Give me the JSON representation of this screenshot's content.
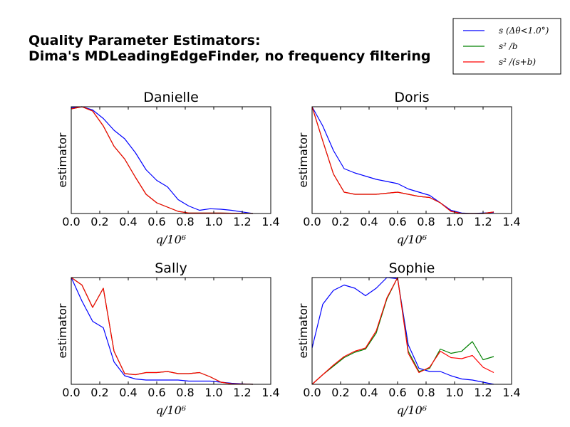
{
  "figure": {
    "title_line1": "Quality Parameter Estimators:",
    "title_line2": "Dima's MDLeadingEdgeFinder, no frequency filtering"
  },
  "legend": {
    "placement": "top-right",
    "entries": [
      {
        "label": "s (Δθ<1.0°)",
        "color": "#0000ff"
      },
      {
        "label": "s² /b",
        "color": "#008000"
      },
      {
        "label": "s² /(s+b)",
        "color": "#ff0000"
      }
    ]
  },
  "chart_data": [
    {
      "type": "line",
      "title": "Danielle",
      "xlabel": "q/10⁶",
      "ylabel": "estimator",
      "xlim": [
        0,
        1.4
      ],
      "ylim": [
        0,
        1
      ],
      "xticks": [
        "0.0",
        "0.2",
        "0.4",
        "0.6",
        "0.8",
        "1.0",
        "1.2",
        "1.4"
      ],
      "x": [
        0.0,
        0.075,
        0.15,
        0.225,
        0.3,
        0.375,
        0.45,
        0.525,
        0.6,
        0.675,
        0.75,
        0.825,
        0.9,
        0.975,
        1.05,
        1.125,
        1.2,
        1.275
      ],
      "series": [
        {
          "color": "#0000ff",
          "values": [
            0.99,
            1.0,
            0.97,
            0.89,
            0.78,
            0.7,
            0.57,
            0.41,
            0.31,
            0.25,
            0.13,
            0.07,
            0.03,
            0.045,
            0.04,
            0.03,
            0.015,
            0.0
          ]
        },
        {
          "color": "#008000",
          "values": [
            0.98,
            1.0,
            0.96,
            0.82,
            0.63,
            0.51,
            0.34,
            0.18,
            0.1,
            0.06,
            0.02,
            0.005,
            0.005,
            0.005,
            0.005,
            0.003,
            0.002,
            0.0
          ]
        },
        {
          "color": "#ff0000",
          "values": [
            0.98,
            1.0,
            0.96,
            0.82,
            0.63,
            0.51,
            0.34,
            0.18,
            0.1,
            0.06,
            0.02,
            0.005,
            0.005,
            0.005,
            0.005,
            0.003,
            0.002,
            0.0
          ]
        }
      ]
    },
    {
      "type": "line",
      "title": "Doris",
      "xlabel": "q/10⁶",
      "ylabel": "estimator",
      "xlim": [
        0,
        1.4
      ],
      "ylim": [
        0,
        1
      ],
      "xticks": [
        "0.0",
        "0.2",
        "0.4",
        "0.6",
        "0.8",
        "1.0",
        "1.2",
        "1.4"
      ],
      "x": [
        0.0,
        0.075,
        0.15,
        0.225,
        0.3,
        0.375,
        0.45,
        0.525,
        0.6,
        0.675,
        0.75,
        0.825,
        0.9,
        0.975,
        1.05,
        1.125,
        1.2,
        1.275
      ],
      "series": [
        {
          "color": "#0000ff",
          "values": [
            1.0,
            0.82,
            0.59,
            0.42,
            0.38,
            0.35,
            0.32,
            0.3,
            0.28,
            0.23,
            0.2,
            0.17,
            0.1,
            0.03,
            0.005,
            0.0,
            0.005,
            0.01
          ]
        },
        {
          "color": "#008000",
          "values": [
            1.0,
            0.68,
            0.37,
            0.2,
            0.18,
            0.18,
            0.18,
            0.19,
            0.2,
            0.18,
            0.16,
            0.15,
            0.1,
            0.02,
            0.0,
            0.0,
            0.0,
            0.015
          ]
        },
        {
          "color": "#ff0000",
          "values": [
            1.0,
            0.68,
            0.37,
            0.2,
            0.18,
            0.18,
            0.18,
            0.19,
            0.2,
            0.18,
            0.16,
            0.15,
            0.1,
            0.02,
            0.0,
            0.0,
            0.0,
            0.015
          ]
        }
      ]
    },
    {
      "type": "line",
      "title": "Sally",
      "xlabel": "q/10⁶",
      "ylabel": "estimator",
      "xlim": [
        0,
        1.4
      ],
      "ylim": [
        0,
        1
      ],
      "xticks": [
        "0.0",
        "0.2",
        "0.4",
        "0.6",
        "0.8",
        "1.0",
        "1.2",
        "1.4"
      ],
      "x": [
        0.0,
        0.075,
        0.15,
        0.225,
        0.3,
        0.375,
        0.45,
        0.525,
        0.6,
        0.675,
        0.75,
        0.825,
        0.9,
        0.975,
        1.05,
        1.125,
        1.2,
        1.275
      ],
      "series": [
        {
          "color": "#0000ff",
          "values": [
            1.0,
            0.78,
            0.59,
            0.53,
            0.21,
            0.08,
            0.05,
            0.04,
            0.04,
            0.04,
            0.04,
            0.03,
            0.03,
            0.03,
            0.02,
            0.01,
            0.005,
            0.0
          ]
        },
        {
          "color": "#008000",
          "values": [
            1.0,
            0.93,
            0.72,
            0.9,
            0.31,
            0.1,
            0.09,
            0.11,
            0.11,
            0.12,
            0.1,
            0.1,
            0.11,
            0.07,
            0.02,
            0.005,
            0.002,
            0.0
          ]
        },
        {
          "color": "#ff0000",
          "values": [
            1.0,
            0.93,
            0.72,
            0.9,
            0.31,
            0.1,
            0.09,
            0.11,
            0.11,
            0.12,
            0.1,
            0.1,
            0.11,
            0.07,
            0.02,
            0.005,
            0.002,
            0.0
          ]
        }
      ]
    },
    {
      "type": "line",
      "title": "Sophie",
      "xlabel": "q/10⁶",
      "ylabel": "estimator",
      "xlim": [
        0,
        1.4
      ],
      "ylim": [
        0,
        1
      ],
      "xticks": [
        "0.0",
        "0.2",
        "0.4",
        "0.6",
        "0.8",
        "1.0",
        "1.2",
        "1.4"
      ],
      "x": [
        0.0,
        0.075,
        0.15,
        0.225,
        0.3,
        0.375,
        0.45,
        0.525,
        0.6,
        0.675,
        0.75,
        0.825,
        0.9,
        0.975,
        1.05,
        1.125,
        1.2,
        1.275
      ],
      "series": [
        {
          "color": "#0000ff",
          "values": [
            0.34,
            0.75,
            0.88,
            0.93,
            0.9,
            0.83,
            0.9,
            1.0,
            0.99,
            0.37,
            0.15,
            0.12,
            0.12,
            0.08,
            0.05,
            0.04,
            0.02,
            0.0
          ]
        },
        {
          "color": "#008000",
          "values": [
            0.0,
            0.09,
            0.17,
            0.25,
            0.3,
            0.33,
            0.48,
            0.8,
            1.0,
            0.31,
            0.12,
            0.15,
            0.33,
            0.29,
            0.31,
            0.4,
            0.23,
            0.26
          ]
        },
        {
          "color": "#ff0000",
          "values": [
            0.0,
            0.09,
            0.18,
            0.26,
            0.31,
            0.34,
            0.5,
            0.81,
            1.0,
            0.29,
            0.11,
            0.16,
            0.31,
            0.25,
            0.24,
            0.27,
            0.16,
            0.11
          ]
        }
      ]
    }
  ]
}
